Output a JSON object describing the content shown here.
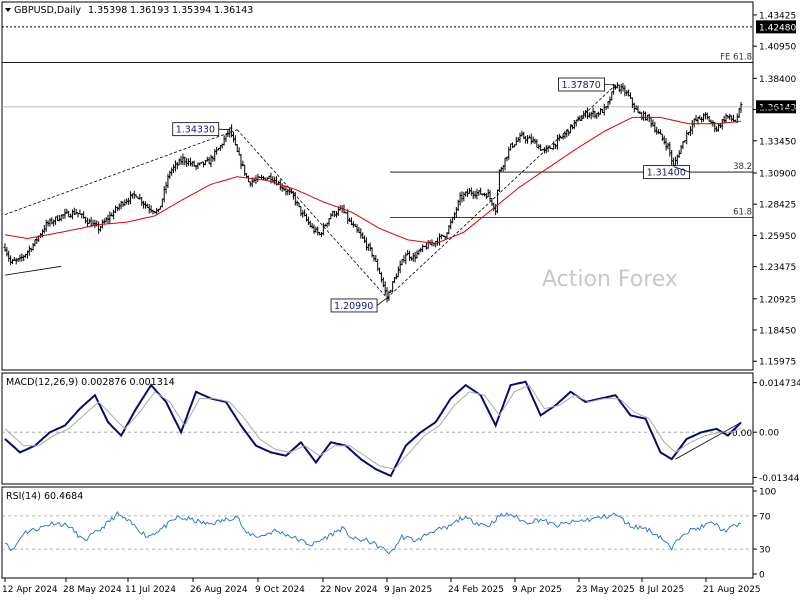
{
  "chart_data": [
    {
      "type": "ohlc",
      "title": "GBPUSD,Daily",
      "ohlc_header": [
        "1.35398",
        "1.36193",
        "1.35394",
        "1.36143"
      ],
      "watermark": "Action Forex",
      "y_ticks": [
        "1.43425",
        "1.40950",
        "1.38400",
        "1.35925",
        "1.33450",
        "1.30900",
        "1.28425",
        "1.25950",
        "1.23475",
        "1.20925",
        "1.18450",
        "1.15975"
      ],
      "ylim": [
        1.1528,
        1.4445
      ],
      "last_price": "1.36143",
      "levels": [
        {
          "label": "1.42480",
          "value": 1.4248,
          "style": "dashed",
          "badge": true
        },
        {
          "label": "FE 61.8",
          "value": 1.3965,
          "style": "solid"
        },
        {
          "label": "38.2",
          "value": 1.3097,
          "style": "solid"
        },
        {
          "label": "61.8",
          "value": 1.2737,
          "style": "solid"
        }
      ],
      "annotations": [
        {
          "label": "1.34330",
          "value": 1.3433
        },
        {
          "label": "1.20990",
          "value": 1.2099
        },
        {
          "label": "1.37870",
          "value": 1.3787
        },
        {
          "label": "1.31400",
          "value": 1.314
        }
      ],
      "x_ticks": [
        "12 Apr 2024",
        "28 May 2024",
        "11 Jul 2024",
        "26 Aug 2024",
        "9 Oct 2024",
        "22 Nov 2024",
        "9 Jan 2025",
        "24 Feb 2025",
        "9 Apr 2025",
        "23 May 2025",
        "8 Jul 2025",
        "21 Aug 2025"
      ],
      "close_waypoints": [
        [
          0,
          1.25
        ],
        [
          3,
          1.238
        ],
        [
          8,
          1.24
        ],
        [
          15,
          1.252
        ],
        [
          22,
          1.268
        ],
        [
          30,
          1.275
        ],
        [
          38,
          1.278
        ],
        [
          44,
          1.271
        ],
        [
          50,
          1.265
        ],
        [
          58,
          1.278
        ],
        [
          63,
          1.286
        ],
        [
          70,
          1.292
        ],
        [
          76,
          1.282
        ],
        [
          82,
          1.278
        ],
        [
          88,
          1.31
        ],
        [
          95,
          1.32
        ],
        [
          102,
          1.314
        ],
        [
          109,
          1.318
        ],
        [
          115,
          1.33
        ],
        [
          120,
          1.3433
        ],
        [
          124,
          1.325
        ],
        [
          130,
          1.302
        ],
        [
          136,
          1.304
        ],
        [
          142,
          1.306
        ],
        [
          148,
          1.298
        ],
        [
          154,
          1.29
        ],
        [
          158,
          1.278
        ],
        [
          164,
          1.265
        ],
        [
          168,
          1.26
        ],
        [
          174,
          1.276
        ],
        [
          180,
          1.28
        ],
        [
          184,
          1.27
        ],
        [
          190,
          1.259
        ],
        [
          196,
          1.245
        ],
        [
          200,
          1.23
        ],
        [
          204,
          1.2099
        ],
        [
          208,
          1.225
        ],
        [
          214,
          1.245
        ],
        [
          218,
          1.242
        ],
        [
          224,
          1.25
        ],
        [
          230,
          1.255
        ],
        [
          235,
          1.26
        ],
        [
          239,
          1.272
        ],
        [
          243,
          1.289
        ],
        [
          248,
          1.294
        ],
        [
          253,
          1.293
        ],
        [
          258,
          1.292
        ],
        [
          262,
          1.28
        ],
        [
          264,
          1.31
        ],
        [
          270,
          1.33
        ],
        [
          276,
          1.338
        ],
        [
          282,
          1.334
        ],
        [
          288,
          1.326
        ],
        [
          292,
          1.33
        ],
        [
          298,
          1.338
        ],
        [
          304,
          1.348
        ],
        [
          310,
          1.356
        ],
        [
          316,
          1.356
        ],
        [
          321,
          1.36
        ],
        [
          326,
          1.3787
        ],
        [
          332,
          1.372
        ],
        [
          338,
          1.356
        ],
        [
          344,
          1.352
        ],
        [
          348,
          1.342
        ],
        [
          354,
          1.33
        ],
        [
          357,
          1.314
        ],
        [
          360,
          1.326
        ],
        [
          364,
          1.34
        ],
        [
          368,
          1.35
        ],
        [
          374,
          1.354
        ],
        [
          380,
          1.344
        ],
        [
          385,
          1.354
        ],
        [
          390,
          1.35
        ],
        [
          393,
          1.3614
        ]
      ],
      "ma_waypoints": [
        [
          0,
          1.26
        ],
        [
          12,
          1.257
        ],
        [
          30,
          1.262
        ],
        [
          50,
          1.268
        ],
        [
          65,
          1.27
        ],
        [
          80,
          1.275
        ],
        [
          95,
          1.288
        ],
        [
          110,
          1.3
        ],
        [
          124,
          1.306
        ],
        [
          140,
          1.303
        ],
        [
          155,
          1.296
        ],
        [
          170,
          1.286
        ],
        [
          185,
          1.278
        ],
        [
          200,
          1.265
        ],
        [
          215,
          1.256
        ],
        [
          230,
          1.253
        ],
        [
          245,
          1.262
        ],
        [
          260,
          1.28
        ],
        [
          275,
          1.298
        ],
        [
          290,
          1.313
        ],
        [
          305,
          1.328
        ],
        [
          320,
          1.342
        ],
        [
          335,
          1.353
        ],
        [
          350,
          1.353
        ],
        [
          365,
          1.348
        ],
        [
          380,
          1.348
        ],
        [
          393,
          1.35
        ]
      ],
      "trendlines": [
        {
          "from": [
            0,
            1.276
          ],
          "to": [
            124,
            1.3433
          ],
          "style": "dashed"
        },
        {
          "from": [
            124,
            1.3433
          ],
          "to": [
            204,
            1.2099
          ],
          "style": "dashed"
        },
        {
          "from": [
            204,
            1.2099
          ],
          "to": [
            326,
            1.3787
          ],
          "style": "dashed"
        },
        {
          "from": [
            0,
            1.228
          ],
          "to": [
            30,
            1.235
          ],
          "style": "solid"
        }
      ]
    },
    {
      "type": "line",
      "title": "MACD(12,26,9) 0.002876 0.001314",
      "y_ticks": [
        "0.014734",
        "0.00",
        "-0.013442"
      ],
      "ylim": [
        -0.0154,
        0.0176
      ],
      "zero_label": "0.00",
      "series": [
        {
          "name": "MACD",
          "waypoints": [
            [
              0,
              -0.002
            ],
            [
              8,
              -0.006
            ],
            [
              16,
              -0.004
            ],
            [
              24,
              0.0
            ],
            [
              32,
              0.002
            ],
            [
              40,
              0.007
            ],
            [
              48,
              0.011
            ],
            [
              55,
              0.003
            ],
            [
              62,
              -0.001
            ],
            [
              70,
              0.007
            ],
            [
              78,
              0.014
            ],
            [
              86,
              0.009
            ],
            [
              94,
              0.0
            ],
            [
              102,
              0.012
            ],
            [
              110,
              0.01
            ],
            [
              118,
              0.009
            ],
            [
              126,
              0.002
            ],
            [
              134,
              -0.004
            ],
            [
              142,
              -0.006
            ],
            [
              150,
              -0.007
            ],
            [
              158,
              -0.003
            ],
            [
              166,
              -0.009
            ],
            [
              174,
              -0.003
            ],
            [
              182,
              -0.004
            ],
            [
              190,
              -0.008
            ],
            [
              198,
              -0.011
            ],
            [
              206,
              -0.013
            ],
            [
              214,
              -0.004
            ],
            [
              222,
              0.0
            ],
            [
              230,
              0.003
            ],
            [
              238,
              0.01
            ],
            [
              246,
              0.014
            ],
            [
              254,
              0.011
            ],
            [
              262,
              0.002
            ],
            [
              270,
              0.014
            ],
            [
              278,
              0.015
            ],
            [
              286,
              0.005
            ],
            [
              294,
              0.008
            ],
            [
              302,
              0.012
            ],
            [
              310,
              0.009
            ],
            [
              318,
              0.01
            ],
            [
              326,
              0.011
            ],
            [
              334,
              0.005
            ],
            [
              342,
              0.004
            ],
            [
              350,
              -0.006
            ],
            [
              356,
              -0.008
            ],
            [
              364,
              -0.002
            ],
            [
              372,
              0.0
            ],
            [
              380,
              0.001
            ],
            [
              386,
              -0.001
            ],
            [
              393,
              0.0029
            ]
          ]
        },
        {
          "name": "Signal",
          "waypoints": [
            [
              0,
              0.001
            ],
            [
              10,
              -0.004
            ],
            [
              18,
              -0.004
            ],
            [
              26,
              -0.001
            ],
            [
              34,
              0.001
            ],
            [
              42,
              0.005
            ],
            [
              50,
              0.009
            ],
            [
              57,
              0.005
            ],
            [
              64,
              0.001
            ],
            [
              72,
              0.006
            ],
            [
              80,
              0.012
            ],
            [
              88,
              0.009
            ],
            [
              96,
              0.002
            ],
            [
              104,
              0.01
            ],
            [
              112,
              0.01
            ],
            [
              120,
              0.009
            ],
            [
              128,
              0.004
            ],
            [
              136,
              -0.002
            ],
            [
              144,
              -0.005
            ],
            [
              152,
              -0.006
            ],
            [
              160,
              -0.004
            ],
            [
              168,
              -0.007
            ],
            [
              176,
              -0.004
            ],
            [
              184,
              -0.004
            ],
            [
              192,
              -0.007
            ],
            [
              200,
              -0.01
            ],
            [
              208,
              -0.011
            ],
            [
              216,
              -0.006
            ],
            [
              224,
              -0.001
            ],
            [
              232,
              0.002
            ],
            [
              240,
              0.008
            ],
            [
              248,
              0.012
            ],
            [
              256,
              0.011
            ],
            [
              264,
              0.005
            ],
            [
              272,
              0.012
            ],
            [
              280,
              0.014
            ],
            [
              288,
              0.007
            ],
            [
              296,
              0.008
            ],
            [
              304,
              0.011
            ],
            [
              312,
              0.009
            ],
            [
              320,
              0.01
            ],
            [
              328,
              0.01
            ],
            [
              336,
              0.006
            ],
            [
              344,
              0.004
            ],
            [
              352,
              -0.003
            ],
            [
              358,
              -0.006
            ],
            [
              366,
              -0.003
            ],
            [
              374,
              -0.001
            ],
            [
              382,
              0.0
            ],
            [
              388,
              0.0
            ],
            [
              393,
              0.0013
            ]
          ]
        }
      ],
      "trendline": {
        "from": [
          358,
          -0.008
        ],
        "to": [
          393,
          0.0029
        ]
      }
    },
    {
      "type": "line",
      "title": "RSI(14) 60.4684",
      "y_ticks": [
        "100",
        "70",
        "30",
        "0"
      ],
      "levels": [
        70,
        30
      ],
      "ylim": [
        0,
        100
      ],
      "series": [
        {
          "name": "RSI",
          "waypoints": [
            [
              0,
              40
            ],
            [
              4,
              28
            ],
            [
              10,
              50
            ],
            [
              18,
              55
            ],
            [
              26,
              62
            ],
            [
              34,
              58
            ],
            [
              42,
              40
            ],
            [
              50,
              52
            ],
            [
              60,
              72
            ],
            [
              68,
              60
            ],
            [
              76,
              45
            ],
            [
              84,
              55
            ],
            [
              92,
              68
            ],
            [
              100,
              65
            ],
            [
              108,
              60
            ],
            [
              116,
              64
            ],
            [
              124,
              70
            ],
            [
              128,
              50
            ],
            [
              136,
              45
            ],
            [
              144,
              52
            ],
            [
              150,
              48
            ],
            [
              158,
              40
            ],
            [
              164,
              35
            ],
            [
              172,
              45
            ],
            [
              180,
              55
            ],
            [
              186,
              42
            ],
            [
              194,
              40
            ],
            [
              202,
              30
            ],
            [
              206,
              25
            ],
            [
              212,
              45
            ],
            [
              220,
              40
            ],
            [
              228,
              52
            ],
            [
              236,
              55
            ],
            [
              244,
              68
            ],
            [
              252,
              62
            ],
            [
              258,
              58
            ],
            [
              264,
              70
            ],
            [
              270,
              72
            ],
            [
              278,
              62
            ],
            [
              286,
              66
            ],
            [
              294,
              58
            ],
            [
              302,
              62
            ],
            [
              310,
              65
            ],
            [
              318,
              68
            ],
            [
              326,
              72
            ],
            [
              334,
              58
            ],
            [
              342,
              55
            ],
            [
              350,
              45
            ],
            [
              356,
              30
            ],
            [
              362,
              50
            ],
            [
              370,
              55
            ],
            [
              378,
              62
            ],
            [
              384,
              52
            ],
            [
              390,
              58
            ],
            [
              393,
              60.47
            ]
          ]
        }
      ]
    }
  ]
}
